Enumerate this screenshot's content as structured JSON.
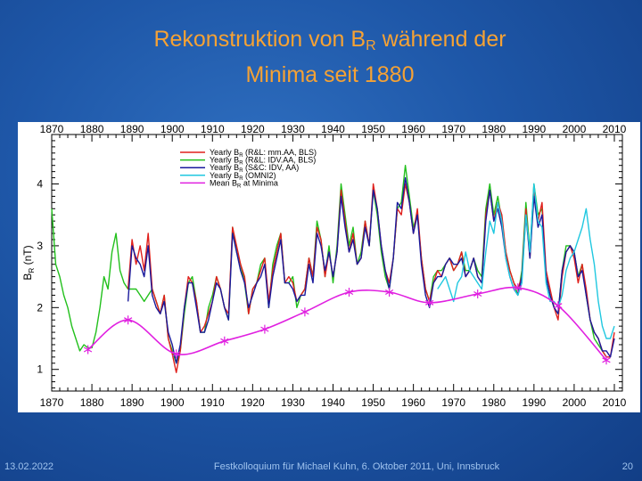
{
  "slide": {
    "title_line1_pre": "Rekonstruktion von B",
    "title_sub": "R",
    "title_line1_post": " während der",
    "title_line2": "Minima seit 1880",
    "footer_date": "13.02.2022",
    "footer_event": "Festkolloquium für Michael Kuhn, 6. Oktober 2011, Uni, Innsbruck",
    "footer_page": "20"
  },
  "chart_data": {
    "type": "line",
    "xlabel": "",
    "ylabel_pre": "B",
    "ylabel_sub": "R",
    "ylabel_post": " (nT)",
    "xlim": [
      1870,
      2012
    ],
    "ylim": [
      0.65,
      4.8
    ],
    "xticks": [
      1870,
      1880,
      1890,
      1900,
      1910,
      1920,
      1930,
      1940,
      1950,
      1960,
      1970,
      1980,
      1990,
      2000,
      2010
    ],
    "xtick_labels": [
      "1870",
      "1880",
      "1890",
      "1900",
      "1910",
      "1920",
      "1930",
      "1940",
      "1950",
      "1960",
      "1970",
      "1980",
      "1990",
      "2000",
      "2010"
    ],
    "yticks": [
      1,
      2,
      3,
      4
    ],
    "ytick_labels": [
      "1",
      "2",
      "3",
      "4"
    ],
    "legend_position": "top-center",
    "series": [
      {
        "name": "Yearly B_R (R&L: mm.AA, BLS)",
        "label_pre": "Yearly B",
        "label_sub": "R",
        "label_post": " (R&L: mm.AA, BLS)",
        "color": "#e0201c",
        "x": [
          1889,
          1890,
          1891,
          1892,
          1893,
          1894,
          1895,
          1896,
          1897,
          1898,
          1899,
          1900,
          1901,
          1902,
          1903,
          1904,
          1905,
          1906,
          1907,
          1908,
          1909,
          1910,
          1911,
          1912,
          1913,
          1914,
          1915,
          1916,
          1917,
          1918,
          1919,
          1920,
          1921,
          1922,
          1923,
          1924,
          1925,
          1926,
          1927,
          1928,
          1929,
          1930,
          1931,
          1932,
          1933,
          1934,
          1935,
          1936,
          1937,
          1938,
          1939,
          1940,
          1941,
          1942,
          1943,
          1944,
          1945,
          1946,
          1947,
          1948,
          1949,
          1950,
          1951,
          1952,
          1953,
          1954,
          1955,
          1956,
          1957,
          1958,
          1959,
          1960,
          1961,
          1962,
          1963,
          1964,
          1965,
          1966,
          1967,
          1968,
          1969,
          1970,
          1971,
          1972,
          1973,
          1974,
          1975,
          1976,
          1977,
          1978,
          1979,
          1980,
          1981,
          1982,
          1983,
          1984,
          1985,
          1986,
          1987,
          1988,
          1989,
          1990,
          1991,
          1992,
          1993,
          1994,
          1995,
          1996,
          1997,
          1998,
          1999,
          2000,
          2001,
          2002,
          2003,
          2004,
          2005,
          2006,
          2007,
          2008,
          2009,
          2010
        ],
        "y": [
          2.3,
          3.1,
          2.7,
          3.0,
          2.6,
          3.2,
          2.3,
          2.1,
          1.9,
          2.2,
          1.5,
          1.25,
          0.95,
          1.3,
          2.0,
          2.5,
          2.4,
          2.1,
          1.6,
          1.7,
          1.9,
          2.1,
          2.5,
          2.3,
          2.0,
          1.9,
          3.3,
          3.0,
          2.7,
          2.5,
          1.9,
          2.3,
          2.4,
          2.6,
          2.8,
          2.1,
          2.6,
          2.9,
          3.2,
          2.4,
          2.5,
          2.4,
          2.1,
          2.2,
          2.3,
          2.8,
          2.5,
          3.3,
          3.1,
          2.5,
          2.9,
          2.5,
          2.9,
          3.9,
          3.4,
          2.9,
          3.2,
          2.7,
          2.8,
          3.4,
          3.0,
          4.0,
          3.6,
          3.0,
          2.6,
          2.4,
          2.8,
          3.6,
          3.5,
          4.0,
          3.7,
          3.2,
          3.6,
          2.8,
          2.3,
          2.1,
          2.4,
          2.6,
          2.5,
          2.7,
          2.8,
          2.6,
          2.7,
          2.9,
          2.5,
          2.6,
          2.8,
          2.5,
          2.4,
          3.5,
          3.9,
          3.4,
          3.7,
          3.5,
          2.9,
          2.6,
          2.4,
          2.3,
          2.5,
          3.6,
          2.8,
          3.9,
          3.4,
          3.7,
          2.6,
          2.3,
          2.0,
          1.8,
          2.5,
          2.9,
          3.0,
          2.8,
          2.4,
          2.7,
          2.3,
          1.8,
          1.6,
          1.5,
          1.3,
          1.2,
          1.2,
          1.6
        ]
      },
      {
        "name": "Yearly B_R (R&L: IDV.AA, BLS)",
        "label_pre": "Yearly B",
        "label_sub": "R",
        "label_post": " (R&L: IDV.AA, BLS)",
        "color": "#22c01c",
        "x": [
          1870,
          1871,
          1872,
          1873,
          1874,
          1875,
          1876,
          1877,
          1878,
          1879,
          1880,
          1881,
          1882,
          1883,
          1884,
          1885,
          1886,
          1887,
          1888,
          1889,
          1890,
          1891,
          1892,
          1893,
          1894,
          1895,
          1896,
          1897,
          1898,
          1899,
          1900,
          1901,
          1902,
          1903,
          1904,
          1905,
          1906,
          1907,
          1908,
          1909,
          1910,
          1911,
          1912,
          1913,
          1914,
          1915,
          1916,
          1917,
          1918,
          1919,
          1920,
          1921,
          1922,
          1923,
          1924,
          1925,
          1926,
          1927,
          1928,
          1929,
          1930,
          1931,
          1932,
          1933,
          1934,
          1935,
          1936,
          1937,
          1938,
          1939,
          1940,
          1941,
          1942,
          1943,
          1944,
          1945,
          1946,
          1947,
          1948,
          1949,
          1950,
          1951,
          1952,
          1953,
          1954,
          1955,
          1956,
          1957,
          1958,
          1959,
          1960,
          1961,
          1962,
          1963,
          1964,
          1965,
          1966,
          1967,
          1968,
          1969,
          1970,
          1971,
          1972,
          1973,
          1974,
          1975,
          1976,
          1977,
          1978,
          1979,
          1980,
          1981,
          1982,
          1983,
          1984,
          1985,
          1986,
          1987,
          1988,
          1989,
          1990,
          1991,
          1992,
          1993,
          1994,
          1995,
          1996,
          1997,
          1998,
          1999,
          2000,
          2001,
          2002,
          2003,
          2004,
          2005,
          2006,
          2007,
          2008
        ],
        "y": [
          3.6,
          2.7,
          2.5,
          2.2,
          2.0,
          1.7,
          1.5,
          1.3,
          1.4,
          1.35,
          1.35,
          1.6,
          2.0,
          2.5,
          2.3,
          2.9,
          3.2,
          2.6,
          2.4,
          2.3,
          2.3,
          2.3,
          2.2,
          2.1,
          2.2,
          2.3,
          2.1,
          1.9,
          2.2,
          1.5,
          1.3,
          1.1,
          1.3,
          1.9,
          2.4,
          2.5,
          2.1,
          1.6,
          1.6,
          2.0,
          2.2,
          2.5,
          2.3,
          2.0,
          1.8,
          3.3,
          2.9,
          2.7,
          2.4,
          1.9,
          2.3,
          2.4,
          2.7,
          2.8,
          2.0,
          2.7,
          3.0,
          3.2,
          2.4,
          2.4,
          2.5,
          2.0,
          2.2,
          2.3,
          2.8,
          2.5,
          3.4,
          3.1,
          2.5,
          3.0,
          2.4,
          3.0,
          4.0,
          3.5,
          3.0,
          3.3,
          2.7,
          2.9,
          3.4,
          3.0,
          3.9,
          3.5,
          2.9,
          2.5,
          2.3,
          2.8,
          3.6,
          3.7,
          4.3,
          3.8,
          3.3,
          3.5,
          2.8,
          2.3,
          2.1,
          2.5,
          2.6,
          2.6,
          2.7,
          2.8,
          2.6,
          2.7,
          2.9,
          2.6,
          2.6,
          2.8,
          2.6,
          2.5,
          3.6,
          4.0,
          3.5,
          3.8,
          3.4,
          2.9,
          2.6,
          2.4,
          2.2,
          2.6,
          3.7,
          2.9,
          4.0,
          3.5,
          3.6,
          2.5,
          2.2,
          2.0,
          1.9,
          2.6,
          3.0,
          3.0,
          2.9,
          2.5,
          2.7,
          2.2,
          1.8,
          1.5,
          1.4,
          1.3,
          1.2
        ]
      },
      {
        "name": "Yearly B_R (S&C: IDV, AA)",
        "label_pre": "Yearly B",
        "label_sub": "R",
        "label_post": " (S&C: IDV, AA)",
        "color": "#1a1a9c",
        "x": [
          1889,
          1890,
          1891,
          1892,
          1893,
          1894,
          1895,
          1896,
          1897,
          1898,
          1899,
          1900,
          1901,
          1902,
          1903,
          1904,
          1905,
          1906,
          1907,
          1908,
          1909,
          1910,
          1911,
          1912,
          1913,
          1914,
          1915,
          1916,
          1917,
          1918,
          1919,
          1920,
          1921,
          1922,
          1923,
          1924,
          1925,
          1926,
          1927,
          1928,
          1929,
          1930,
          1931,
          1932,
          1933,
          1934,
          1935,
          1936,
          1937,
          1938,
          1939,
          1940,
          1941,
          1942,
          1943,
          1944,
          1945,
          1946,
          1947,
          1948,
          1949,
          1950,
          1951,
          1952,
          1953,
          1954,
          1955,
          1956,
          1957,
          1958,
          1959,
          1960,
          1961,
          1962,
          1963,
          1964,
          1965,
          1966,
          1967,
          1968,
          1969,
          1970,
          1971,
          1972,
          1973,
          1974,
          1975,
          1976,
          1977,
          1978,
          1979,
          1980,
          1981,
          1982,
          1983,
          1984,
          1985,
          1986,
          1987,
          1988,
          1989,
          1990,
          1991,
          1992,
          1993,
          1994,
          1995,
          1996,
          1997,
          1998,
          1999,
          2000,
          2001,
          2002,
          2003,
          2004,
          2005,
          2006,
          2007,
          2008,
          2009,
          2010
        ],
        "y": [
          2.1,
          3.0,
          2.8,
          2.7,
          2.5,
          3.0,
          2.2,
          2.0,
          1.9,
          2.1,
          1.6,
          1.4,
          1.1,
          1.4,
          2.0,
          2.4,
          2.4,
          2.0,
          1.6,
          1.6,
          1.8,
          2.1,
          2.4,
          2.3,
          2.0,
          1.8,
          3.2,
          2.9,
          2.6,
          2.4,
          2.0,
          2.2,
          2.4,
          2.5,
          2.7,
          2.0,
          2.5,
          2.8,
          3.1,
          2.4,
          2.4,
          2.3,
          2.1,
          2.2,
          2.2,
          2.7,
          2.4,
          3.2,
          3.0,
          2.6,
          2.9,
          2.5,
          2.9,
          3.8,
          3.3,
          2.9,
          3.1,
          2.7,
          2.8,
          3.3,
          3.0,
          3.9,
          3.6,
          3.0,
          2.6,
          2.3,
          2.8,
          3.7,
          3.6,
          4.1,
          3.7,
          3.2,
          3.5,
          2.7,
          2.2,
          2.0,
          2.4,
          2.5,
          2.5,
          2.7,
          2.8,
          2.7,
          2.7,
          2.8,
          2.5,
          2.6,
          2.8,
          2.5,
          2.4,
          3.4,
          3.9,
          3.4,
          3.6,
          3.3,
          2.8,
          2.5,
          2.3,
          2.2,
          2.5,
          3.5,
          2.8,
          3.8,
          3.3,
          3.5,
          2.5,
          2.2,
          2.0,
          1.9,
          2.6,
          2.9,
          3.0,
          2.9,
          2.5,
          2.6,
          2.2,
          1.8,
          1.6,
          1.5,
          1.3,
          1.3,
          1.2,
          1.5
        ]
      },
      {
        "name": "Yearly B_R (OMNI2)",
        "label_pre": "Yearly B",
        "label_sub": "R",
        "label_post": " (OMNI2)",
        "color": "#20c8e0",
        "x": [
          1966,
          1967,
          1968,
          1969,
          1970,
          1971,
          1972,
          1973,
          1974,
          1975,
          1976,
          1977,
          1978,
          1979,
          1980,
          1981,
          1982,
          1983,
          1984,
          1985,
          1986,
          1987,
          1988,
          1989,
          1990,
          1991,
          1992,
          1993,
          1994,
          1995,
          1996,
          1997,
          1998,
          1999,
          2000,
          2001,
          2002,
          2003,
          2004,
          2005,
          2006,
          2007,
          2008,
          2009,
          2010
        ],
        "y": [
          2.3,
          2.4,
          2.5,
          2.3,
          2.1,
          2.4,
          2.5,
          2.9,
          2.6,
          2.5,
          2.4,
          2.3,
          2.9,
          3.4,
          3.2,
          3.7,
          3.4,
          2.8,
          2.5,
          2.3,
          2.2,
          2.4,
          3.5,
          2.9,
          4.0,
          3.4,
          3.3,
          2.4,
          2.1,
          2.1,
          2.0,
          2.2,
          2.6,
          2.8,
          2.9,
          3.1,
          3.3,
          3.6,
          3.1,
          2.7,
          2.1,
          1.7,
          1.5,
          1.5,
          1.7
        ]
      },
      {
        "name": "Mean B_R at Minima",
        "label_pre": "Mean B",
        "label_sub": "R",
        "label_post": " at Minima",
        "color": "#e020e0",
        "x": [
          1879,
          1889,
          1901,
          1913,
          1923,
          1933,
          1944,
          1954,
          1964,
          1976,
          1986,
          1996,
          2008
        ],
        "y": [
          1.32,
          1.8,
          1.25,
          1.46,
          1.65,
          1.93,
          2.25,
          2.25,
          2.08,
          2.22,
          2.32,
          2.03,
          1.15
        ]
      }
    ]
  }
}
